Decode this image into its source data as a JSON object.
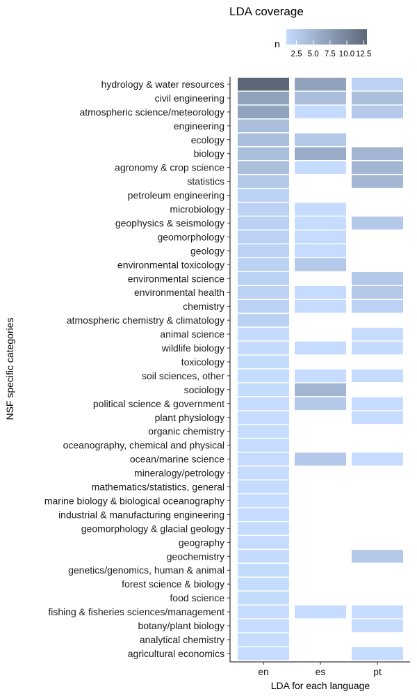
{
  "chart_data": {
    "type": "heatmap",
    "title": "LDA coverage",
    "xlabel": "LDA for each language",
    "ylabel": "NSF specific categories",
    "legend_title": "n",
    "legend_ticks": [
      "2.5",
      "5.0",
      "7.5",
      "10.0",
      "12.5"
    ],
    "legend_range": [
      1,
      13
    ],
    "legend_position": "top",
    "colors": {
      "low": "#c5dcff",
      "high": "#5c6778",
      "axis": "#000000"
    },
    "x": [
      "en",
      "es",
      "pt"
    ],
    "y": [
      "hydrology & water resources",
      "civil engineering",
      "atmospheric science/meteorology",
      "engineering",
      "ecology",
      "biology",
      "agronomy & crop science",
      "statistics",
      "petroleum engineering",
      "microbiology",
      "geophysics & seismology",
      "geomorphology",
      "geology",
      "environmental toxicology",
      "environmental science",
      "environmental health",
      "chemistry",
      "atmospheric chemistry & climatology",
      "animal science",
      "wildlife biology",
      "toxicology",
      "soil sciences, other",
      "sociology",
      "political science & government",
      "plant physiology",
      "organic chemistry",
      "oceanography, chemical and physical",
      "ocean/marine science",
      "mineralogy/petrology",
      "mathematics/statistics, general",
      "marine biology & biological oceanography",
      "industrial & manufacturing engineering",
      "geomorphology & glacial geology",
      "geography",
      "geochemistry",
      "genetics/genomics, human & animal",
      "forest science & biology",
      "food science",
      "fishing & fisheries sciences/management",
      "botany/plant biology",
      "analytical chemistry",
      "agricultural economics"
    ],
    "values": [
      [
        13,
        7,
        2
      ],
      [
        7,
        4,
        4
      ],
      [
        7,
        1,
        3
      ],
      [
        4,
        null,
        null
      ],
      [
        4,
        3,
        null
      ],
      [
        4,
        6,
        5
      ],
      [
        4,
        1,
        5
      ],
      [
        3,
        null,
        5
      ],
      [
        2,
        null,
        null
      ],
      [
        2,
        1,
        null
      ],
      [
        2,
        1,
        3
      ],
      [
        2,
        1,
        null
      ],
      [
        2,
        1,
        null
      ],
      [
        2,
        3,
        null
      ],
      [
        2,
        null,
        3
      ],
      [
        2,
        1,
        3
      ],
      [
        2,
        1,
        2
      ],
      [
        2,
        null,
        null
      ],
      [
        1,
        null,
        1
      ],
      [
        1,
        1,
        1
      ],
      [
        1,
        null,
        null
      ],
      [
        1,
        1,
        1
      ],
      [
        1,
        5,
        null
      ],
      [
        1,
        3,
        1
      ],
      [
        1,
        null,
        1
      ],
      [
        1,
        null,
        null
      ],
      [
        1,
        null,
        null
      ],
      [
        1,
        3,
        1
      ],
      [
        1,
        null,
        null
      ],
      [
        1,
        null,
        null
      ],
      [
        1,
        null,
        null
      ],
      [
        1,
        null,
        null
      ],
      [
        1,
        null,
        null
      ],
      [
        1,
        null,
        null
      ],
      [
        1,
        null,
        3
      ],
      [
        1,
        null,
        null
      ],
      [
        1,
        null,
        null
      ],
      [
        1,
        null,
        null
      ],
      [
        1,
        1,
        1
      ],
      [
        1,
        null,
        1
      ],
      [
        1,
        null,
        null
      ],
      [
        1,
        null,
        1
      ]
    ]
  }
}
